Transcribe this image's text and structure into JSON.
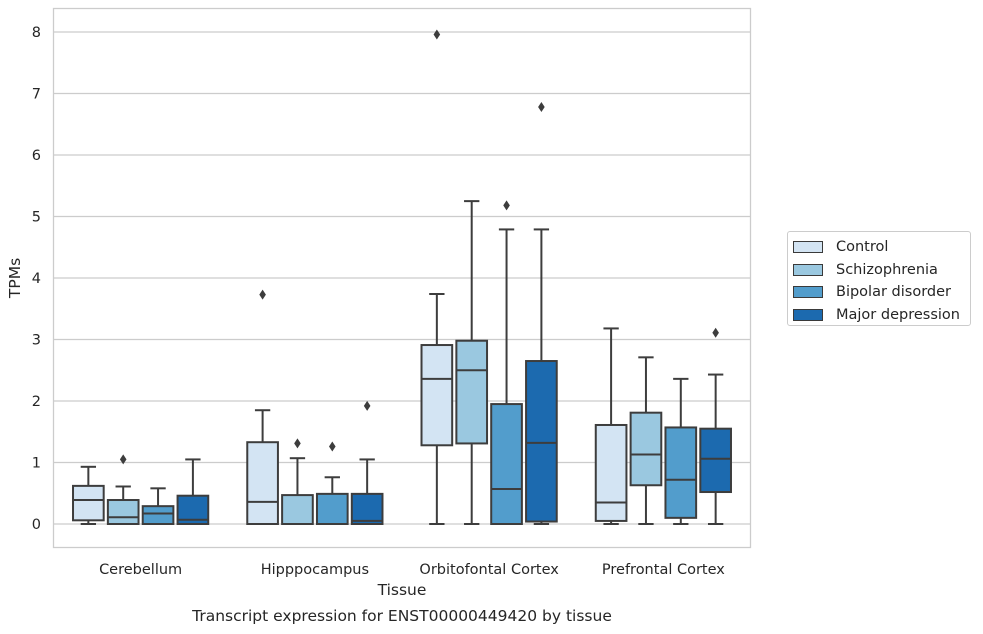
{
  "chart_data": {
    "type": "box",
    "title": "Transcript expression for ENST00000449420 by tissue",
    "xlabel": "Tissue",
    "ylabel": "TPMs",
    "ylim": [
      -0.4,
      8.37
    ],
    "yticks": [
      0,
      1,
      2,
      3,
      4,
      5,
      6,
      7,
      8
    ],
    "grid": "horizontal",
    "legend_position": "right",
    "categories": [
      "Cerebellum",
      "Hipppocampus",
      "Orbitofontal Cortex",
      "Prefrontal Cortex"
    ],
    "series": [
      {
        "name": "Control",
        "color": "#d3e4f3",
        "boxes": [
          {
            "q1": 0.06,
            "median": 0.39,
            "q3": 0.62,
            "whisker_low": 0.0,
            "whisker_high": 0.93,
            "outliers": []
          },
          {
            "q1": 0.0,
            "median": 0.36,
            "q3": 1.33,
            "whisker_low": 0.0,
            "whisker_high": 1.85,
            "outliers": [
              3.73
            ]
          },
          {
            "q1": 1.28,
            "median": 2.36,
            "q3": 2.91,
            "whisker_low": 0.0,
            "whisker_high": 3.74,
            "outliers": [
              7.96
            ]
          },
          {
            "q1": 0.05,
            "median": 0.35,
            "q3": 1.61,
            "whisker_low": 0.0,
            "whisker_high": 3.18,
            "outliers": []
          }
        ]
      },
      {
        "name": "Schizophrenia",
        "color": "#9ac8e0",
        "boxes": [
          {
            "q1": 0.0,
            "median": 0.11,
            "q3": 0.39,
            "whisker_low": 0.0,
            "whisker_high": 0.61,
            "outliers": [
              1.05
            ]
          },
          {
            "q1": 0.0,
            "median": 0.0,
            "q3": 0.47,
            "whisker_low": 0.0,
            "whisker_high": 1.07,
            "outliers": [
              1.31
            ]
          },
          {
            "q1": 1.31,
            "median": 2.5,
            "q3": 2.98,
            "whisker_low": 0.0,
            "whisker_high": 5.25,
            "outliers": []
          },
          {
            "q1": 0.63,
            "median": 1.13,
            "q3": 1.81,
            "whisker_low": 0.0,
            "whisker_high": 2.71,
            "outliers": []
          }
        ]
      },
      {
        "name": "Bipolar disorder",
        "color": "#529dcc",
        "boxes": [
          {
            "q1": 0.0,
            "median": 0.17,
            "q3": 0.29,
            "whisker_low": 0.0,
            "whisker_high": 0.58,
            "outliers": []
          },
          {
            "q1": 0.0,
            "median": 0.0,
            "q3": 0.49,
            "whisker_low": 0.0,
            "whisker_high": 0.76,
            "outliers": [
              1.26
            ]
          },
          {
            "q1": 0.0,
            "median": 0.57,
            "q3": 1.95,
            "whisker_low": 0.0,
            "whisker_high": 4.79,
            "outliers": [
              5.18
            ]
          },
          {
            "q1": 0.1,
            "median": 0.72,
            "q3": 1.57,
            "whisker_low": 0.0,
            "whisker_high": 2.36,
            "outliers": []
          }
        ]
      },
      {
        "name": "Major depression",
        "color": "#1c6aaf",
        "boxes": [
          {
            "q1": 0.0,
            "median": 0.07,
            "q3": 0.46,
            "whisker_low": 0.0,
            "whisker_high": 1.05,
            "outliers": []
          },
          {
            "q1": 0.0,
            "median": 0.05,
            "q3": 0.49,
            "whisker_low": 0.0,
            "whisker_high": 1.05,
            "outliers": [
              1.92
            ]
          },
          {
            "q1": 0.04,
            "median": 1.32,
            "q3": 2.65,
            "whisker_low": 0.0,
            "whisker_high": 4.79,
            "outliers": [
              6.78
            ]
          },
          {
            "q1": 0.52,
            "median": 1.06,
            "q3": 1.55,
            "whisker_low": 0.0,
            "whisker_high": 2.43,
            "outliers": [
              3.11
            ]
          }
        ]
      }
    ]
  }
}
